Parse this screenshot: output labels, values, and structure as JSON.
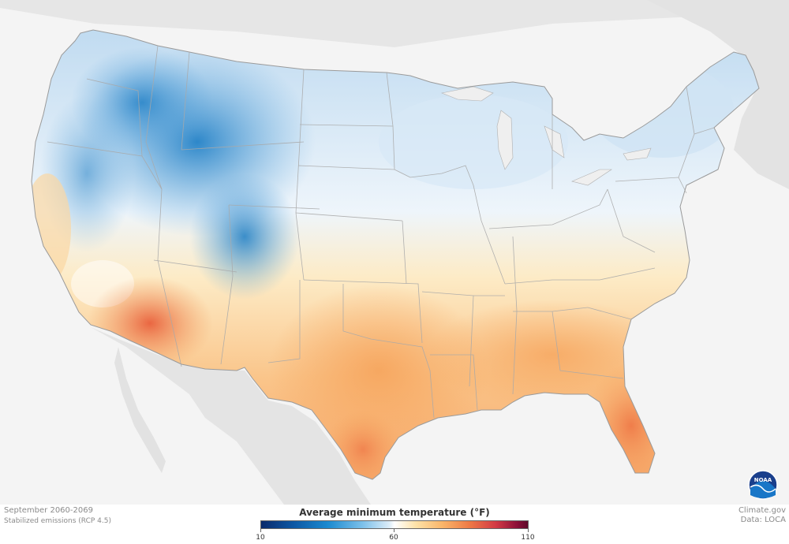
{
  "map": {
    "period": "September 2060-2069",
    "scenario": "Stabilized emissions (RCP 4.5)",
    "credit_site": "Climate.gov",
    "credit_data": "Data: LOCA",
    "logo_text": "NOAA"
  },
  "legend": {
    "title": "Average minimum temperature (°F)",
    "min_label": "10",
    "mid_label": "60",
    "max_label": "110",
    "range": [
      10,
      110
    ]
  },
  "colors": {
    "cold": "#1b8ad0",
    "cool": "#dbecf8",
    "warm": "#f9b56a",
    "hot": "#ee7a45"
  }
}
